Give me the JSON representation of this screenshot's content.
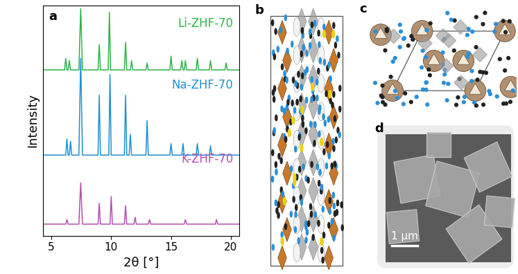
{
  "chart_data": {
    "type": "line",
    "panel_label": "a",
    "x_label": "2θ [°]",
    "y_label": "Intensity",
    "xlim": [
      4.3,
      20.7
    ],
    "xticks": [
      5,
      10,
      15,
      20
    ],
    "ylim": [
      0,
      100
    ],
    "tick_labels": "x",
    "series": [
      {
        "name": "Li-ZHF-70",
        "color": "#2db34a",
        "x": [
          4.3,
          6.1,
          6.2,
          6.3,
          6.4,
          6.5,
          6.6,
          7.3,
          7.45,
          7.6,
          8.9,
          9.0,
          9.1,
          9.75,
          9.85,
          9.95,
          11.1,
          11.2,
          11.3,
          11.6,
          11.7,
          11.8,
          12.9,
          13.0,
          13.1,
          14.9,
          15.0,
          15.1,
          15.8,
          15.9,
          16.0,
          16.1,
          16.2,
          16.3,
          17.1,
          17.2,
          17.3,
          18.2,
          18.3,
          18.4,
          19.5,
          19.6,
          19.7,
          20.7
        ],
        "values": [
          72,
          72,
          77,
          72,
          72,
          76,
          72,
          72,
          98.6,
          72,
          72,
          83,
          72,
          72,
          97,
          72,
          72,
          84,
          72,
          72,
          76,
          72,
          72,
          75,
          72,
          72,
          78,
          72,
          72,
          76,
          72,
          72,
          76,
          72,
          72,
          77,
          72,
          72,
          76,
          72,
          72,
          75,
          72,
          72
        ]
      },
      {
        "name": "Na-ZHF-70",
        "color": "#1f8fd0",
        "x": [
          4.3,
          6.2,
          6.3,
          6.4,
          6.5,
          6.6,
          6.7,
          7.3,
          7.45,
          7.6,
          8.9,
          9.0,
          9.1,
          9.8,
          9.9,
          10.0,
          11.1,
          11.2,
          11.3,
          11.5,
          11.6,
          11.7,
          12.9,
          13.0,
          13.1,
          14.9,
          15.0,
          15.1,
          15.9,
          16.0,
          16.1,
          17.1,
          17.2,
          17.3,
          18.2,
          18.3,
          18.4,
          20.7
        ],
        "values": [
          35,
          35,
          42,
          35,
          35,
          41,
          35,
          35,
          77,
          35,
          35,
          61,
          35,
          35,
          70,
          35,
          35,
          61,
          35,
          35,
          44,
          35,
          35,
          50,
          35,
          35,
          40,
          35,
          35,
          40,
          35,
          35,
          40,
          35,
          35,
          39,
          35,
          35
        ]
      },
      {
        "name": "K-ZHF-70",
        "color": "#b050b0",
        "x": [
          4.3,
          6.2,
          6.3,
          6.4,
          7.3,
          7.45,
          7.6,
          8.9,
          9.0,
          9.1,
          9.9,
          10.0,
          10.1,
          11.1,
          11.2,
          11.3,
          11.9,
          12.0,
          12.1,
          13.1,
          13.2,
          13.3,
          16.1,
          16.2,
          16.3,
          18.7,
          18.8,
          18.9,
          20.7
        ],
        "values": [
          5,
          5,
          7,
          5,
          5,
          23,
          5,
          5,
          14,
          5,
          5,
          17,
          5,
          5,
          13,
          5,
          5,
          8,
          5,
          5,
          7,
          5,
          5,
          7,
          5,
          5,
          7,
          5,
          5
        ]
      }
    ]
  },
  "panels": [
    {
      "label": "b"
    },
    {
      "label": "c"
    },
    {
      "label": "d",
      "scale_bar": "1 μm"
    }
  ]
}
